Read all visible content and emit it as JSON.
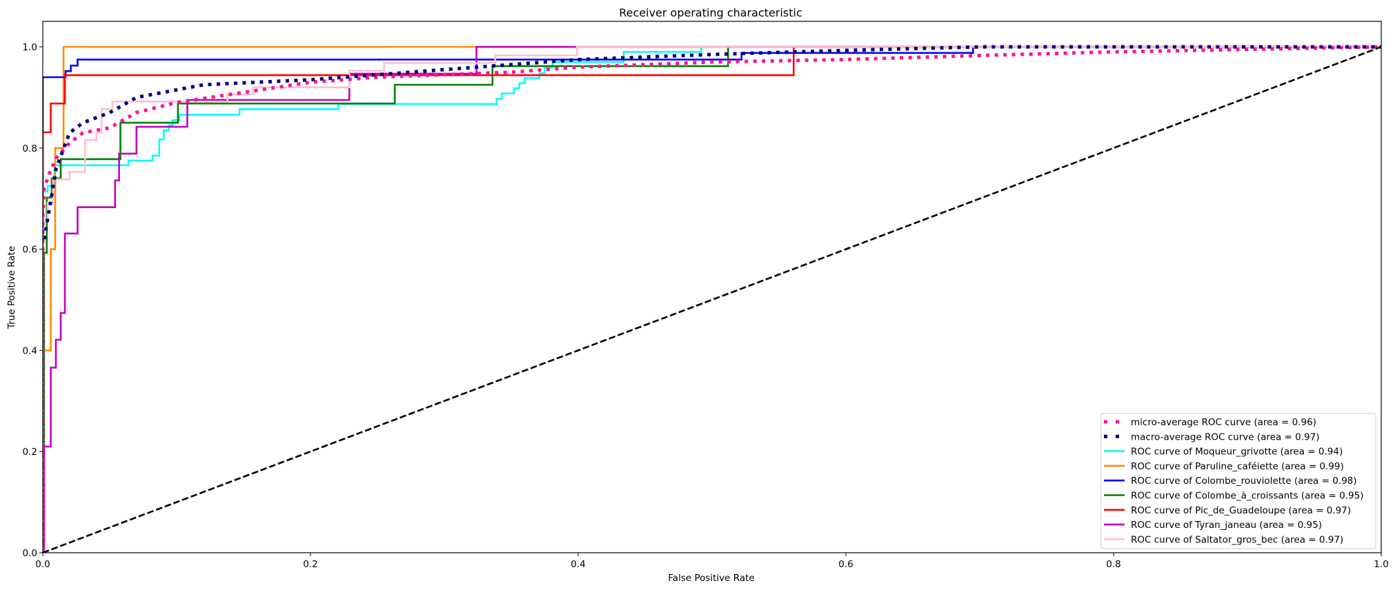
{
  "chart_data": {
    "type": "line",
    "title": "Receiver operating characteristic",
    "xlabel": "False Positive Rate",
    "ylabel": "True Positive Rate",
    "xlim": [
      0,
      1.0
    ],
    "ylim": [
      0,
      1.05
    ],
    "xticks": [
      "0.0",
      "0.2",
      "0.4",
      "0.6",
      "0.8",
      "1.0"
    ],
    "yticks": [
      "0.0",
      "0.2",
      "0.4",
      "0.6",
      "0.8",
      "1.0"
    ],
    "grid": false,
    "legend_position": "lower right",
    "series": [
      {
        "name": "micro-average ROC curve (area = 0.96)",
        "color": "#ff1493",
        "style": "dotted",
        "x": [
          0,
          0,
          0.001,
          0.005,
          0.01,
          0.02,
          0.03,
          0.05,
          0.07,
          0.1,
          0.15,
          0.2,
          0.25,
          0.3,
          0.35,
          0.4,
          0.5,
          0.6,
          0.7,
          0.8,
          0.9,
          1.0
        ],
        "y": [
          0,
          0.66,
          0.72,
          0.75,
          0.78,
          0.81,
          0.83,
          0.84,
          0.87,
          0.89,
          0.91,
          0.93,
          0.94,
          0.945,
          0.95,
          0.96,
          0.97,
          0.975,
          0.983,
          0.99,
          0.995,
          1.0
        ]
      },
      {
        "name": "macro-average ROC curve (area = 0.97)",
        "color": "#000080",
        "style": "dotted",
        "x": [
          0.001,
          0.005,
          0.01,
          0.02,
          0.03,
          0.05,
          0.07,
          0.1,
          0.12,
          0.2,
          0.25,
          0.3,
          0.35,
          0.4,
          0.5,
          0.6,
          0.7,
          1.0
        ],
        "y": [
          0.62,
          0.68,
          0.76,
          0.83,
          0.85,
          0.87,
          0.9,
          0.915,
          0.925,
          0.935,
          0.945,
          0.955,
          0.965,
          0.975,
          0.985,
          0.993,
          1.0,
          1.0
        ]
      },
      {
        "name": "ROC curve of Moqueur_grivotte (area = 0.94)",
        "color": "#00ffff",
        "style": "solid",
        "x": [
          0,
          0,
          0.0036,
          0.0036,
          0.0088,
          0.0088,
          0.064,
          0.064,
          0.082,
          0.082,
          0.087,
          0.087,
          0.0904,
          0.0904,
          0.094,
          0.094,
          0.097,
          0.097,
          0.102,
          0.102,
          0.147,
          0.147,
          0.221,
          0.221,
          0.339,
          0.339,
          0.343,
          0.343,
          0.352,
          0.352,
          0.356,
          0.356,
          0.36,
          0.36,
          0.371,
          0.371,
          0.375,
          0.375,
          0.381,
          0.381,
          0.434,
          0.434,
          0.492,
          0.492,
          1.0
        ],
        "y": [
          0,
          0.714,
          0.714,
          0.725,
          0.725,
          0.766,
          0.766,
          0.775,
          0.775,
          0.785,
          0.785,
          0.817,
          0.817,
          0.835,
          0.835,
          0.845,
          0.845,
          0.855,
          0.855,
          0.866,
          0.866,
          0.877,
          0.877,
          0.887,
          0.887,
          0.897,
          0.897,
          0.908,
          0.908,
          0.918,
          0.918,
          0.928,
          0.928,
          0.938,
          0.938,
          0.948,
          0.948,
          0.959,
          0.959,
          0.97,
          0.97,
          0.99,
          0.99,
          1.0,
          1.0
        ]
      },
      {
        "name": "ROC curve of Paruline_caféiette (area = 0.99)",
        "color": "#ff8c00",
        "style": "solid",
        "x": [
          0,
          0,
          0.006,
          0.006,
          0.0093,
          0.0093,
          0.0155,
          0.0155,
          1.0
        ],
        "y": [
          0,
          0.4,
          0.4,
          0.6,
          0.6,
          0.8,
          0.8,
          1.0,
          1.0
        ]
      },
      {
        "name": "ROC curve of Colombe_rouviolette (area = 0.98)",
        "color": "#0000ff",
        "style": "solid",
        "x": [
          0,
          0,
          0.017,
          0.017,
          0.021,
          0.021,
          0.026,
          0.026,
          0.522,
          0.522,
          0.695,
          0.695,
          1.0
        ],
        "y": [
          0,
          0.94,
          0.94,
          0.952,
          0.952,
          0.963,
          0.963,
          0.975,
          0.975,
          0.988,
          0.988,
          1.0,
          1.0
        ]
      },
      {
        "name": "ROC curve of Colombe_à_croissants (area = 0.95)",
        "color": "#008000",
        "style": "solid",
        "x": [
          0,
          0.001,
          0.001,
          0.003,
          0.003,
          0.0067,
          0.0067,
          0.0134,
          0.0134,
          0.058,
          0.058,
          0.101,
          0.101,
          0.263,
          0.263,
          0.336,
          0.336,
          0.512,
          0.512,
          1.0
        ],
        "y": [
          0,
          0,
          0.593,
          0.593,
          0.702,
          0.702,
          0.74,
          0.74,
          0.778,
          0.778,
          0.85,
          0.85,
          0.888,
          0.888,
          0.925,
          0.925,
          0.962,
          0.962,
          1.0,
          1.0
        ]
      },
      {
        "name": "ROC curve of Pic_de_Guadeloupe (area = 0.97)",
        "color": "#ff0000",
        "style": "solid",
        "x": [
          0,
          0,
          0.006,
          0.006,
          0.0165,
          0.0165,
          0.561,
          0.561,
          1.0
        ],
        "y": [
          0,
          0.831,
          0.831,
          0.888,
          0.888,
          0.944,
          0.944,
          1.0,
          1.0
        ]
      },
      {
        "name": "ROC curve of Tyran_janeau (area = 0.95)",
        "color": "#c000c0",
        "style": "solid",
        "x": [
          0,
          0.001,
          0.001,
          0.006,
          0.006,
          0.0098,
          0.0098,
          0.0134,
          0.0134,
          0.0165,
          0.0165,
          0.026,
          0.026,
          0.054,
          0.054,
          0.057,
          0.057,
          0.07,
          0.07,
          0.108,
          0.108,
          0.229,
          0.229,
          0.324,
          0.324,
          1.0
        ],
        "y": [
          0,
          0,
          0.21,
          0.21,
          0.366,
          0.366,
          0.421,
          0.421,
          0.474,
          0.474,
          0.631,
          0.631,
          0.683,
          0.683,
          0.736,
          0.736,
          0.789,
          0.789,
          0.842,
          0.842,
          0.895,
          0.895,
          0.947,
          0.947,
          1.0,
          1.0
        ]
      },
      {
        "name": "ROC curve of Saltator_gros_bec (area = 0.97)",
        "color": "#ffc0cb",
        "style": "solid",
        "x": [
          0,
          0,
          0.0036,
          0.0036,
          0.0077,
          0.0077,
          0.02,
          0.02,
          0.0316,
          0.0316,
          0.04,
          0.04,
          0.044,
          0.044,
          0.052,
          0.052,
          0.138,
          0.138,
          0.157,
          0.157,
          0.229,
          0.229,
          0.255,
          0.255,
          0.338,
          0.338,
          0.399,
          0.399,
          1.0
        ],
        "y": [
          0,
          0.661,
          0.661,
          0.692,
          0.692,
          0.738,
          0.738,
          0.753,
          0.753,
          0.816,
          0.816,
          0.83,
          0.83,
          0.877,
          0.877,
          0.892,
          0.892,
          0.906,
          0.906,
          0.92,
          0.92,
          0.953,
          0.953,
          0.968,
          0.968,
          0.983,
          0.983,
          1.0,
          1.0
        ]
      }
    ],
    "reference_line": {
      "x": [
        0,
        1
      ],
      "y": [
        0,
        1
      ],
      "color": "#000000",
      "style": "dashed"
    }
  }
}
